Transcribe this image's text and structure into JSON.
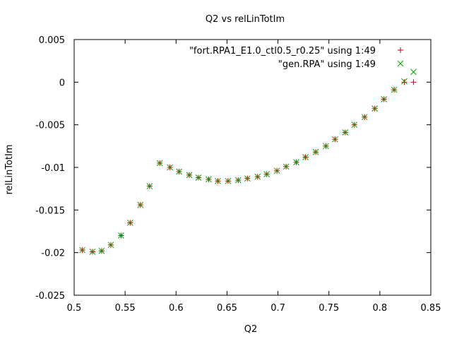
{
  "chart_data": {
    "type": "scatter",
    "title": "Q2 vs relLinTotIm",
    "xlabel": "Q2",
    "ylabel": "relLinTotIm",
    "xlim": [
      0.5,
      0.85
    ],
    "ylim": [
      -0.025,
      0.005
    ],
    "xticks": [
      0.5,
      0.55,
      0.6,
      0.65,
      0.7,
      0.75,
      0.8,
      0.85
    ],
    "yticks": [
      -0.025,
      -0.02,
      -0.015,
      -0.01,
      -0.005,
      0,
      0.005
    ],
    "xtick_labels": [
      "0.5",
      "0.55",
      "0.6",
      "0.65",
      "0.7",
      "0.75",
      "0.8",
      "0.85"
    ],
    "ytick_labels": [
      "-0.025",
      "-0.02",
      "-0.015",
      "-0.01",
      "-0.005",
      "0",
      "0.005"
    ],
    "grid": false,
    "legend_position": "top-right",
    "series": [
      {
        "name": "\"fort.RPA1_E1.0_ctl0.5_r0.25\" using 1:49",
        "marker": "plus",
        "color": "#cc0000",
        "x": [
          0.508,
          0.518,
          0.527,
          0.536,
          0.546,
          0.555,
          0.565,
          0.574,
          0.584,
          0.594,
          0.603,
          0.613,
          0.622,
          0.632,
          0.641,
          0.651,
          0.661,
          0.67,
          0.68,
          0.689,
          0.699,
          0.708,
          0.718,
          0.727,
          0.737,
          0.747,
          0.756,
          0.766,
          0.775,
          0.785,
          0.795,
          0.804,
          0.814,
          0.824,
          0.833
        ],
        "y": [
          -0.0197,
          -0.0199,
          -0.0198,
          -0.0191,
          -0.018,
          -0.0165,
          -0.0144,
          -0.0122,
          -0.0095,
          -0.01,
          -0.0105,
          -0.0109,
          -0.0112,
          -0.0114,
          -0.0116,
          -0.0116,
          -0.0115,
          -0.0113,
          -0.0111,
          -0.0108,
          -0.0104,
          -0.0099,
          -0.0094,
          -0.0088,
          -0.0082,
          -0.0075,
          -0.0067,
          -0.0059,
          -0.005,
          -0.0041,
          -0.0031,
          -0.002,
          -0.0009,
          0.0,
          0.0
        ]
      },
      {
        "name": "\"gen.RPA\" using 1:49",
        "marker": "cross",
        "color": "#00a000",
        "x": [
          0.508,
          0.518,
          0.527,
          0.536,
          0.546,
          0.555,
          0.565,
          0.574,
          0.584,
          0.594,
          0.603,
          0.613,
          0.622,
          0.632,
          0.641,
          0.651,
          0.661,
          0.67,
          0.68,
          0.689,
          0.699,
          0.708,
          0.718,
          0.727,
          0.737,
          0.747,
          0.756,
          0.766,
          0.775,
          0.785,
          0.795,
          0.804,
          0.814,
          0.824,
          0.833
        ],
        "y": [
          -0.0197,
          -0.0199,
          -0.0198,
          -0.0191,
          -0.018,
          -0.0165,
          -0.0144,
          -0.0122,
          -0.0095,
          -0.01,
          -0.0105,
          -0.0109,
          -0.0112,
          -0.0114,
          -0.0116,
          -0.0116,
          -0.0115,
          -0.0113,
          -0.0111,
          -0.0108,
          -0.0104,
          -0.0099,
          -0.0094,
          -0.0088,
          -0.0082,
          -0.0075,
          -0.0067,
          -0.0059,
          -0.005,
          -0.0041,
          -0.0031,
          -0.002,
          -0.0009,
          0.0001,
          0.0012
        ]
      }
    ]
  }
}
